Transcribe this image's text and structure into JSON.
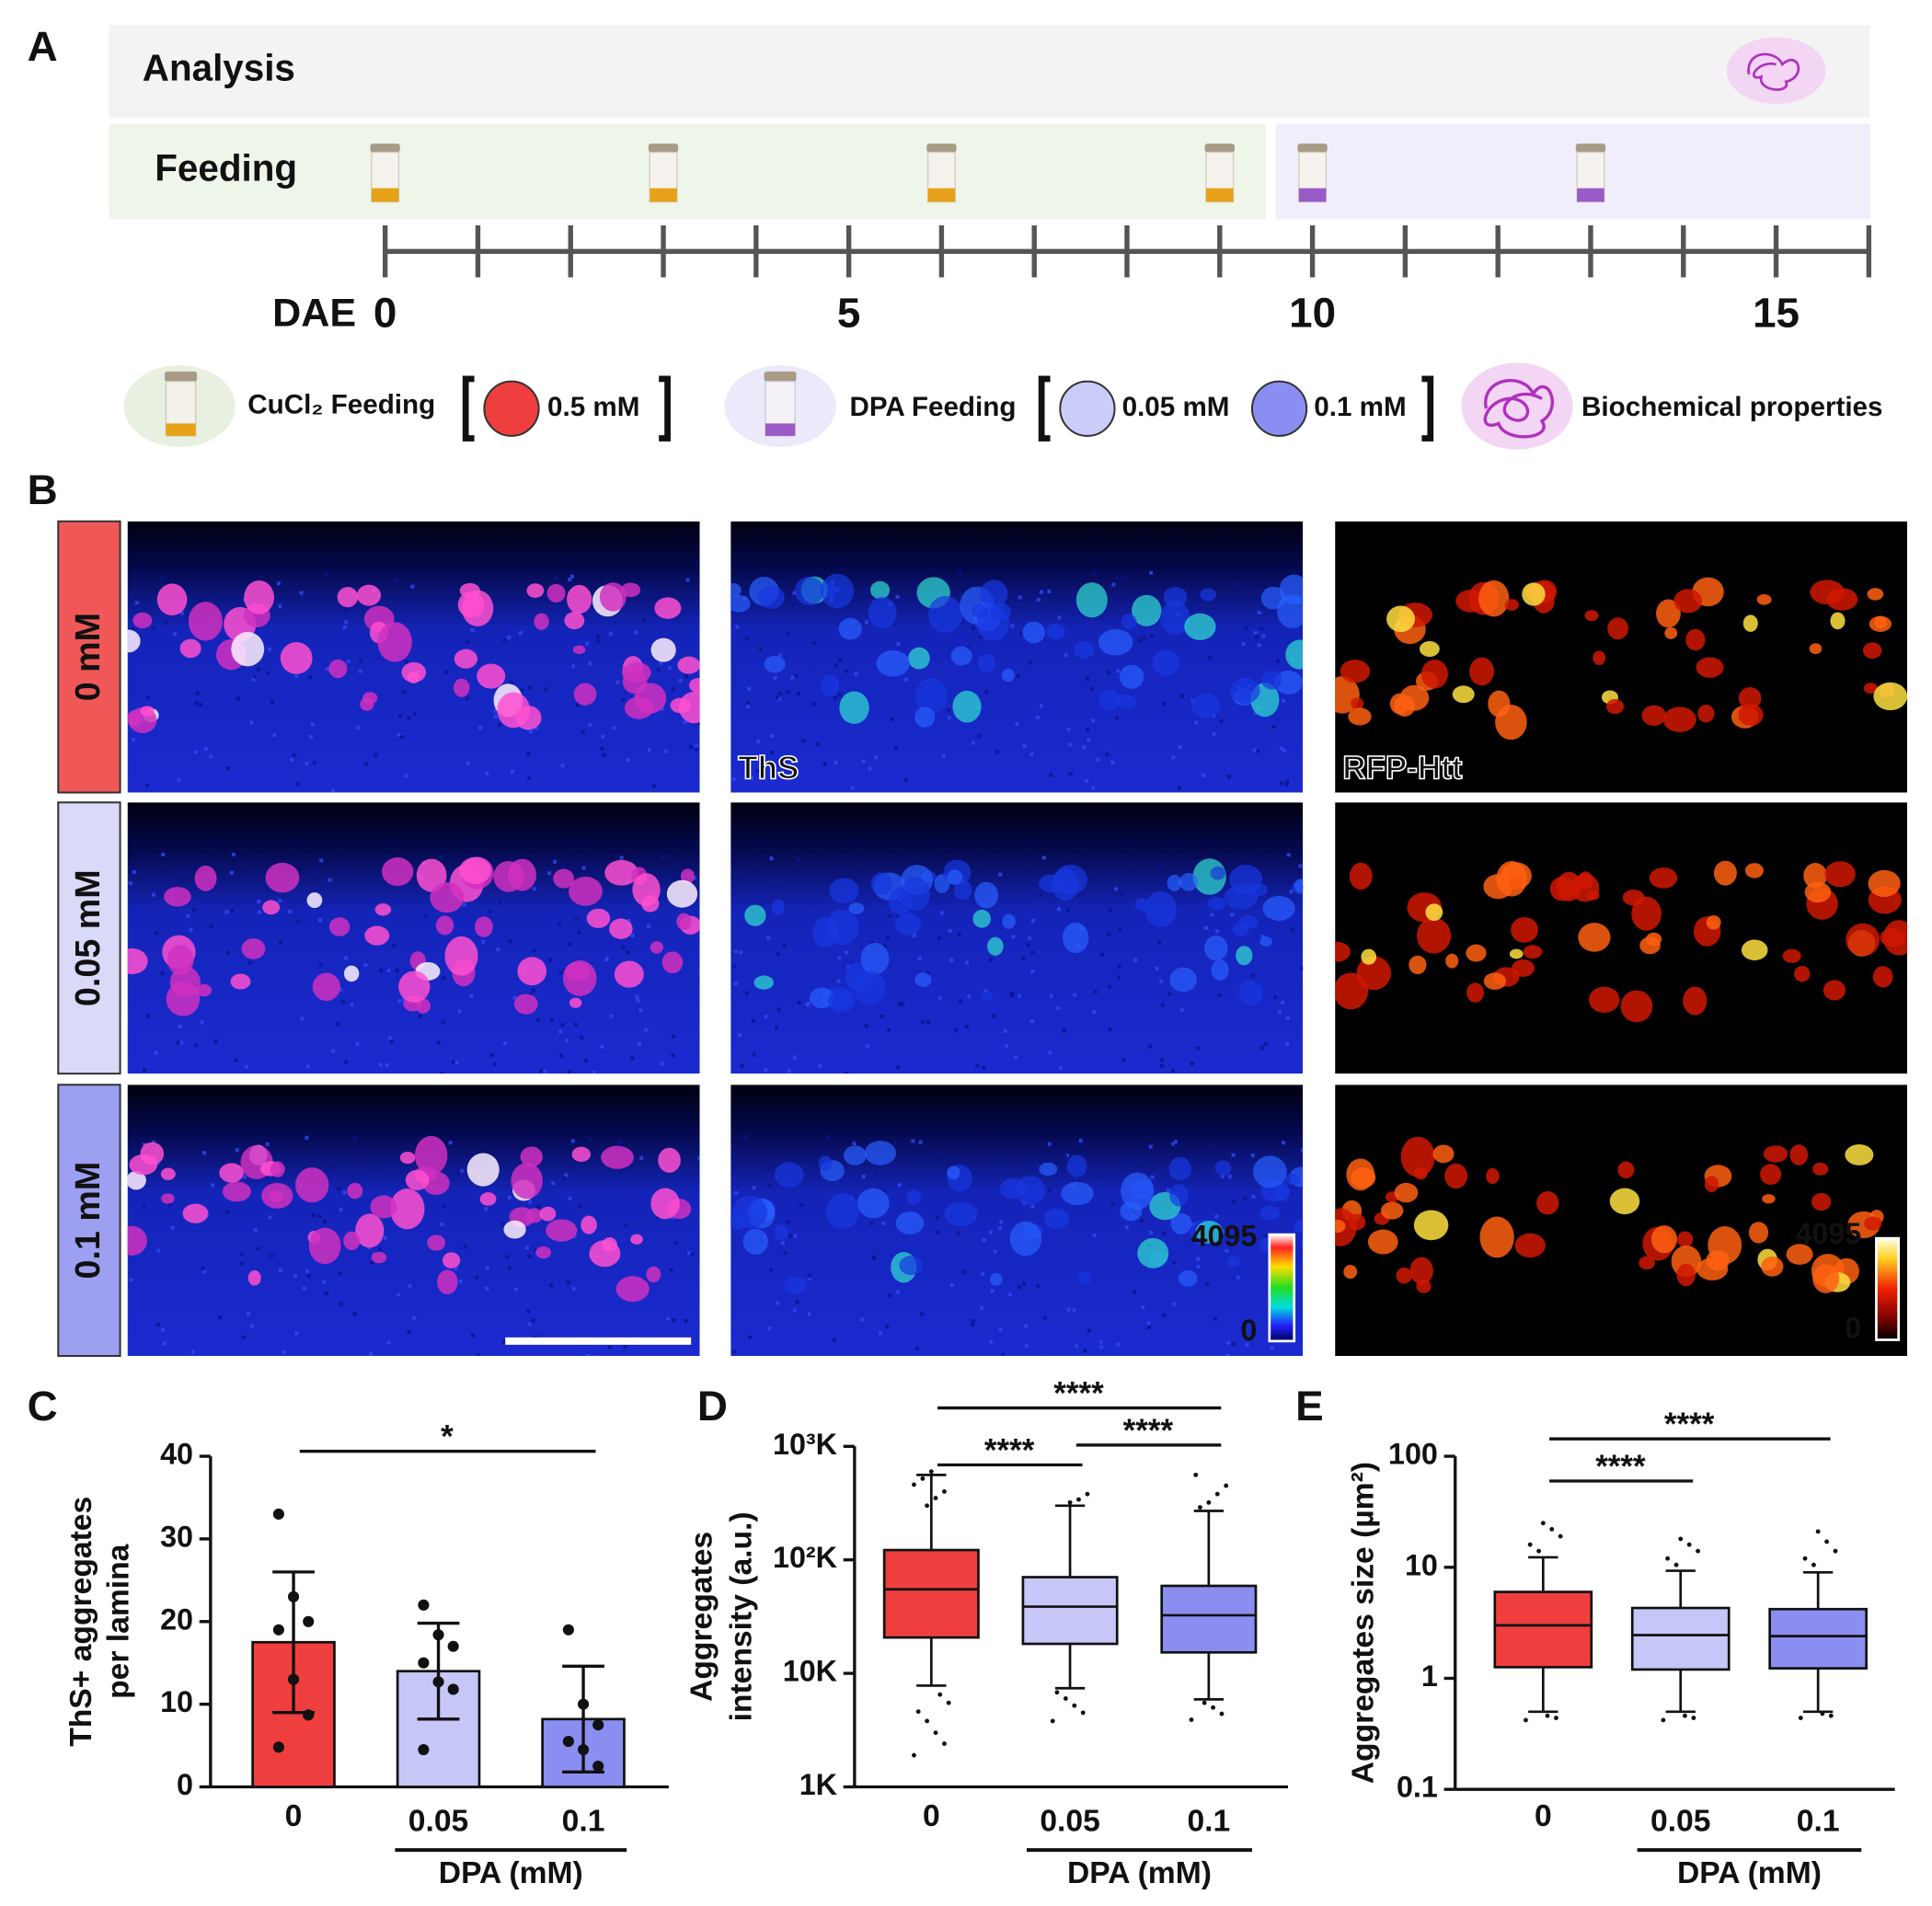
{
  "panel_labels": [
    "A",
    "B",
    "C",
    "D",
    "E"
  ],
  "timeline": {
    "rows": [
      "Analysis",
      "Feeding"
    ],
    "axis_label": "DAE",
    "xlim": [
      0,
      16
    ],
    "xticks": [
      0,
      5,
      10,
      15
    ],
    "xticks_minor": [
      0,
      1,
      2,
      3,
      4,
      5,
      6,
      7,
      8,
      9,
      10,
      11,
      12,
      13,
      14,
      15,
      16
    ],
    "cucl2_feeding_days": [
      0,
      3,
      6,
      9
    ],
    "dpa_feeding_days": [
      10,
      13
    ],
    "analysis_day": 15
  },
  "legend": {
    "cucl2": "CuCl₂ Feeding",
    "cucl2_doses": [
      "0.5 mM"
    ],
    "dpa": "DPA Feeding",
    "dpa_doses": [
      "0.05 mM",
      "0.1 mM"
    ],
    "analysis": "Biochemical properties"
  },
  "images": {
    "row_labels": [
      "0 mM",
      "0.05 mM",
      "0.1 mM"
    ],
    "channel_labels": [
      "ThS",
      "RFP-Htt"
    ],
    "colorbar_range": [
      0,
      4095
    ]
  },
  "chart_data": [
    {
      "type": "bar",
      "categories": [
        "0",
        "0.05",
        "0.1"
      ],
      "group_categories": [
        "0.05",
        "0.1"
      ],
      "group_label": "DPA (mM)",
      "y_label": [
        "ThS+ aggregates",
        "per lamina"
      ],
      "values": [
        17.5,
        14,
        8.2
      ],
      "errors": [
        8.5,
        5.8,
        6.4
      ],
      "points": [
        [
          33,
          23,
          20,
          19,
          13,
          8.7,
          4.8
        ],
        [
          22,
          18.4,
          17,
          15,
          12.7,
          11.8,
          4.5
        ],
        [
          19,
          10,
          7.5,
          5.5,
          4.5,
          2.5
        ]
      ],
      "colors": [
        "#ef3e3e",
        "#c6c7f6",
        "#8a8ef0"
      ],
      "ylim": [
        0,
        40
      ],
      "yticks": [
        0,
        10,
        20,
        30,
        40
      ],
      "significance": [
        {
          "from": "0",
          "to": "0.1",
          "label": "*"
        }
      ]
    },
    {
      "type": "box",
      "log_scale": true,
      "categories": [
        "0",
        "0.05",
        "0.1"
      ],
      "group_categories": [
        "0.05",
        "0.1"
      ],
      "group_label": "DPA (mM)",
      "y_label": [
        "Aggregates",
        "intensity (a.u.)"
      ],
      "boxes": [
        {
          "whisker_low": 7.8,
          "q1": 20.7,
          "median": 55,
          "q3": 122,
          "whisker_high": 560,
          "outliers": [
            1.9,
            2.4,
            3,
            3.8,
            4.6,
            5.5,
            6.5,
            600,
            520,
            460,
            400,
            350,
            300
          ]
        },
        {
          "whisker_low": 7.4,
          "q1": 18.2,
          "median": 38.7,
          "q3": 70.4,
          "whisker_high": 300,
          "outliers": [
            3.8,
            4.5,
            5.2,
            6,
            6.8,
            380,
            340,
            320
          ]
        },
        {
          "whisker_low": 5.9,
          "q1": 15.3,
          "median": 32.5,
          "q3": 59,
          "whisker_high": 270,
          "outliers": [
            3.9,
            4.4,
            5,
            5.5,
            560,
            450,
            380,
            320,
            290
          ]
        }
      ],
      "colors": [
        "#ef3e3e",
        "#c6c7f6",
        "#8a8ef0"
      ],
      "ylim": [
        1,
        1000
      ],
      "yticks": [
        {
          "value": 1,
          "label": "1K"
        },
        {
          "value": 10,
          "label": "10K"
        },
        {
          "value": 100,
          "label": "10²K"
        },
        {
          "value": 1000,
          "label": "10³K"
        }
      ],
      "significance": [
        {
          "from": "0",
          "to": "0.1",
          "label": "****"
        },
        {
          "from": "0",
          "to": "0.05",
          "label": "****"
        },
        {
          "from": "0.05",
          "to": "0.1",
          "label": "****"
        }
      ]
    },
    {
      "type": "box",
      "log_scale": true,
      "categories": [
        "0",
        "0.05",
        "0.1"
      ],
      "group_categories": [
        "0.05",
        "0.1"
      ],
      "group_label": "DPA (mM)",
      "y_label": [
        "Aggregates size (µm²)"
      ],
      "boxes": [
        {
          "whisker_low": 0.5,
          "q1": 1.26,
          "median": 3,
          "q3": 6,
          "whisker_high": 12.3,
          "outliers": [
            0.42,
            0.44,
            0.46,
            14,
            16,
            19,
            22,
            25
          ]
        },
        {
          "whisker_low": 0.5,
          "q1": 1.2,
          "median": 2.45,
          "q3": 4.3,
          "whisker_high": 9.3,
          "outliers": [
            0.42,
            0.44,
            0.46,
            10.5,
            12,
            14,
            16,
            18
          ]
        },
        {
          "whisker_low": 0.5,
          "q1": 1.23,
          "median": 2.4,
          "q3": 4.2,
          "whisker_high": 9,
          "outliers": [
            0.44,
            0.46,
            0.48,
            10.5,
            12,
            14,
            17,
            21
          ]
        }
      ],
      "colors": [
        "#ef3e3e",
        "#c6c7f6",
        "#8a8ef0"
      ],
      "ylim": [
        0.1,
        100
      ],
      "yticks": [
        0.1,
        1,
        10,
        100
      ],
      "significance": [
        {
          "from": "0",
          "to": "0.1",
          "label": "****"
        },
        {
          "from": "0",
          "to": "0.05",
          "label": "****"
        }
      ]
    }
  ]
}
